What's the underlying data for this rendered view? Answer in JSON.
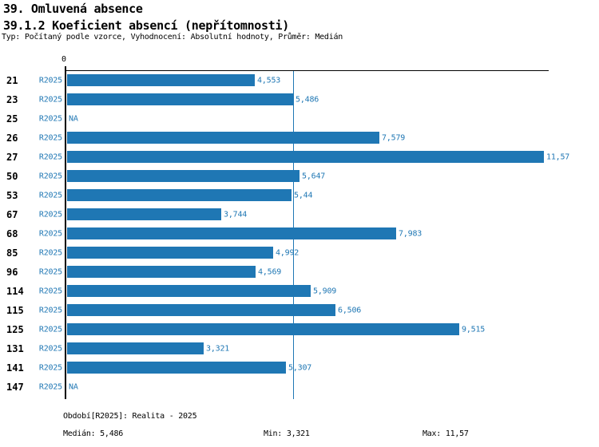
{
  "header": {
    "title1": "39. Omluvená absence",
    "title2": "39.1.2 Koeficient absencí (nepřítomnosti)",
    "subtitle": "Typ: Počítaný podle vzorce, Vyhodnocení: Absolutní hodnoty, Průměr: Medián"
  },
  "axis": {
    "zero_label": "0"
  },
  "colors": {
    "bar_blue": "#1f77b4",
    "text_blue": "#1f77b4",
    "axis_black": "#000000",
    "background": "#ffffff"
  },
  "chart_data": {
    "type": "bar",
    "orientation": "horizontal",
    "title": "39.1.2 Koeficient absencí (nepřítomnosti)",
    "series_label": "R2025",
    "categories": [
      "21",
      "23",
      "25",
      "26",
      "27",
      "50",
      "53",
      "67",
      "68",
      "85",
      "96",
      "114",
      "115",
      "125",
      "131",
      "141",
      "147"
    ],
    "values": [
      4.553,
      5.486,
      null,
      7.579,
      11.57,
      5.647,
      5.44,
      3.744,
      7.983,
      4.992,
      4.569,
      5.909,
      6.506,
      9.515,
      3.321,
      5.307,
      null
    ],
    "value_labels": [
      "4,553",
      "5,486",
      "NA",
      "7,579",
      "11,57",
      "5,647",
      "5,44",
      "3,744",
      "7,983",
      "4,992",
      "4,569",
      "5,909",
      "6,506",
      "9,515",
      "3,321",
      "5,307",
      "NA"
    ],
    "na_label": "NA",
    "xlim": [
      0,
      11.57
    ],
    "median": 5.486,
    "grid": "single median reference line",
    "legend": "none"
  },
  "footer": {
    "period": "Období[R2025]: Realita - 2025",
    "median": "Medián: 5,486",
    "min": "Min: 3,321",
    "max": "Max: 11,57"
  }
}
